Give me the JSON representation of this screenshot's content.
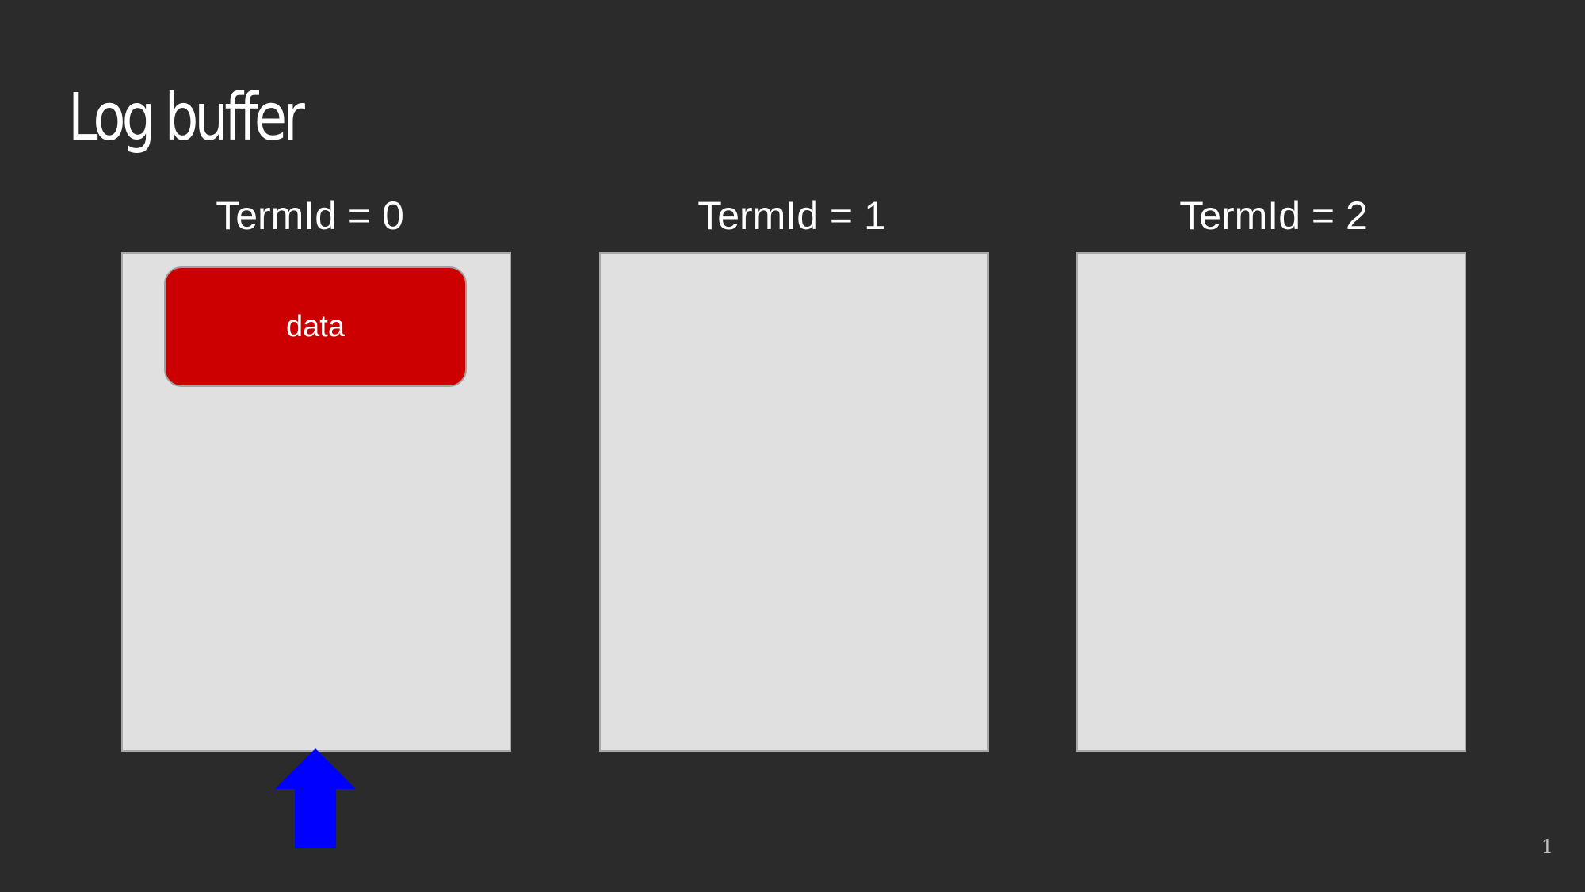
{
  "slide": {
    "title": "Log buffer",
    "page_number": "1"
  },
  "terms": [
    {
      "label": "TermId = 0"
    },
    {
      "label": "TermId = 1"
    },
    {
      "label": "TermId = 2"
    }
  ],
  "data_block": {
    "label": "data",
    "color": "#cc0000"
  },
  "pointer": {
    "icon": "up-arrow-icon",
    "color": "#0000ff"
  }
}
